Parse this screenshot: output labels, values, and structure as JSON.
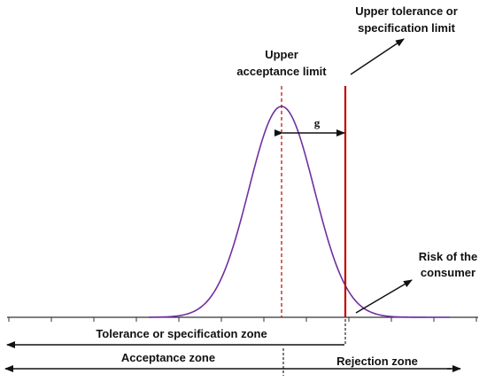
{
  "labels": {
    "upper_tolerance_line1": "Upper tolerance or",
    "upper_tolerance_line2": "specification limit",
    "upper_acceptance_line1": "Upper",
    "upper_acceptance_line2": "acceptance limit",
    "guard_band": "g",
    "risk_line1": "Risk of the",
    "risk_line2": "consumer",
    "tolerance_zone": "Tolerance or specification zone",
    "acceptance_zone": "Acceptance zone",
    "rejection_zone": "Rejection zone"
  },
  "colors": {
    "curve": "#7030A0",
    "tolerance_limit": "#C00000",
    "acceptance_limit": "#C00000",
    "ink": "#111111"
  }
}
